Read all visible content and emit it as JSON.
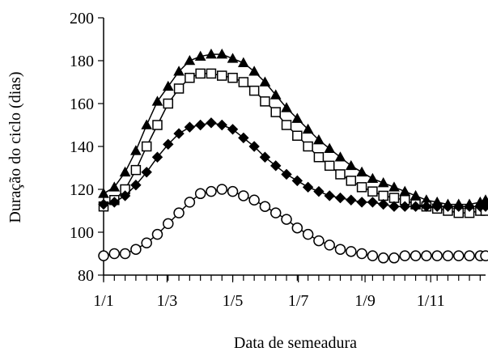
{
  "chart_data": {
    "type": "line",
    "title": "",
    "xlabel": "Data de semeadura",
    "ylabel": "Duração do ciclo (dias)",
    "x_tick_labels": [
      "1/1",
      "1/3",
      "1/5",
      "1/7",
      "1/9",
      "1/11"
    ],
    "x_tick_positions": [
      0,
      59,
      120,
      181,
      243,
      304
    ],
    "x_minor_tick_step": 10,
    "xlim": [
      0,
      355
    ],
    "ylim": [
      80,
      200
    ],
    "y_ticks": [
      80,
      100,
      120,
      140,
      160,
      180,
      200
    ],
    "x": [
      0,
      10,
      20,
      30,
      40,
      50,
      60,
      70,
      80,
      90,
      100,
      110,
      120,
      130,
      140,
      150,
      160,
      170,
      180,
      190,
      200,
      210,
      220,
      230,
      240,
      250,
      260,
      270,
      280,
      290,
      300,
      310,
      320,
      330,
      340,
      350,
      355
    ],
    "series": [
      {
        "marker": "triangle-filled",
        "values": [
          118,
          121,
          128,
          138,
          150,
          161,
          168,
          175,
          180,
          182,
          183,
          183,
          181,
          179,
          175,
          170,
          164,
          158,
          153,
          148,
          143,
          139,
          135,
          131,
          128,
          125,
          123,
          121,
          119,
          117,
          115,
          114,
          113,
          113,
          113,
          114,
          115
        ]
      },
      {
        "marker": "square-open",
        "values": [
          112,
          115,
          120,
          129,
          140,
          150,
          160,
          167,
          172,
          174,
          174,
          173,
          172,
          170,
          166,
          161,
          156,
          150,
          145,
          140,
          135,
          131,
          127,
          124,
          121,
          119,
          117,
          116,
          115,
          113,
          112,
          111,
          110,
          109,
          109,
          110,
          110
        ]
      },
      {
        "marker": "diamond-filled",
        "values": [
          113,
          114,
          117,
          122,
          128,
          135,
          141,
          146,
          149,
          150,
          151,
          150,
          148,
          144,
          140,
          135,
          131,
          127,
          124,
          121,
          119,
          117,
          116,
          115,
          114,
          114,
          113,
          112,
          112,
          112,
          112,
          112,
          112,
          112,
          112,
          112,
          112
        ]
      },
      {
        "marker": "circle-open",
        "values": [
          89,
          90,
          90,
          92,
          95,
          99,
          104,
          109,
          114,
          118,
          119,
          120,
          119,
          117,
          115,
          112,
          109,
          106,
          102,
          99,
          96,
          94,
          92,
          91,
          90,
          89,
          88,
          88,
          89,
          89,
          89,
          89,
          89,
          89,
          89,
          89,
          89
        ]
      }
    ],
    "legend": "none",
    "grid": false
  }
}
